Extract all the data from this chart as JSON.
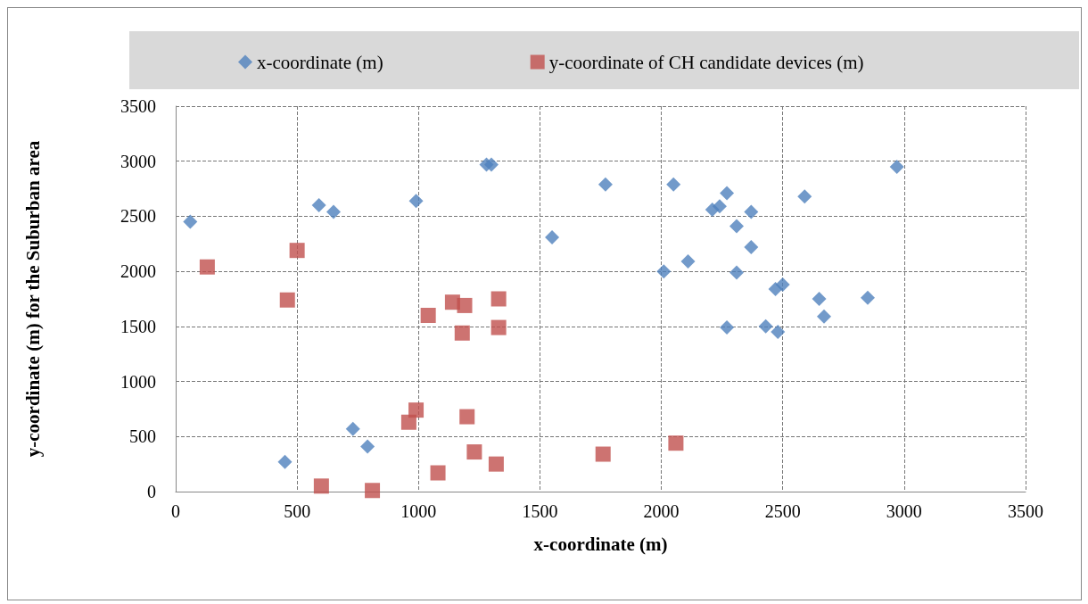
{
  "chart_data": {
    "type": "scatter",
    "xlabel": "x-coordinate (m)",
    "ylabel": "y-coordinate (m) for the Suburban area",
    "xlim": [
      0,
      3500
    ],
    "xticks": [
      0,
      500,
      1000,
      1500,
      2000,
      2500,
      3000,
      3500
    ],
    "ylim": [
      0,
      3500
    ],
    "yticks": [
      0,
      500,
      1000,
      1500,
      2000,
      2500,
      3000,
      3500
    ],
    "grid": true,
    "legend": "top",
    "series": [
      {
        "name": "x-coordinate (m)",
        "color": "#4f81bd",
        "marker": "diamond",
        "x": [
          60,
          450,
          590,
          650,
          730,
          790,
          990,
          1280,
          1300,
          1550,
          1770,
          2010,
          2050,
          2110,
          2210,
          2240,
          2270,
          2270,
          2310,
          2310,
          2370,
          2370,
          2430,
          2470,
          2480,
          2500,
          2590,
          2650,
          2670,
          2850,
          2970
        ],
        "values": [
          2450,
          270,
          2600,
          2540,
          570,
          410,
          2640,
          2970,
          2970,
          2310,
          2790,
          2000,
          2790,
          2090,
          2560,
          2590,
          2710,
          1490,
          2410,
          1990,
          2540,
          2220,
          1500,
          1840,
          1450,
          1880,
          2680,
          1750,
          1590,
          1760,
          2950
        ]
      },
      {
        "name": "y-coordinate of CH candidate devices (m)",
        "color": "#c0504d",
        "marker": "square",
        "x": [
          130,
          460,
          500,
          600,
          810,
          960,
          990,
          1040,
          1080,
          1140,
          1180,
          1190,
          1200,
          1230,
          1320,
          1330,
          1330,
          1760,
          2060
        ],
        "values": [
          2040,
          1740,
          2190,
          50,
          10,
          630,
          740,
          1600,
          170,
          1720,
          1440,
          1690,
          680,
          360,
          250,
          1490,
          1750,
          340,
          440
        ]
      }
    ]
  }
}
